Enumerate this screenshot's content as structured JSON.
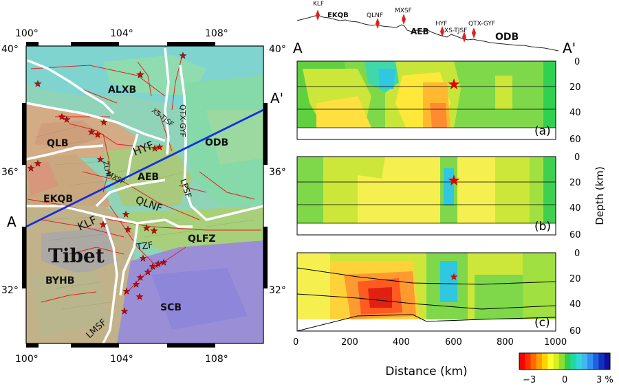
{
  "map": {
    "top_ticks": [
      "100°",
      "104°",
      "108°"
    ],
    "bottom_ticks": [
      "100°",
      "104°",
      "108°"
    ],
    "left_ticks": [
      "40°",
      "36°",
      "32°"
    ],
    "right_ticks": [
      "40°",
      "36°",
      "32°"
    ],
    "profile_start": "A",
    "profile_end": "A'",
    "block_labels": {
      "alxb": "ALXB",
      "qlb": "QLB",
      "odb": "ODB",
      "aeb": "AEB",
      "ekqb": "EKQB",
      "qlfz": "QLFZ",
      "tibet": "Tibet",
      "byhb": "BYHB",
      "scb": "SCB"
    },
    "fault_labels": {
      "hyf": "HYF",
      "zlhf": "ZLHF",
      "mxsf": "MXSF",
      "qlnf": "QLNF",
      "klf": "KLF",
      "tzf": "TZF",
      "lmsf": "LMSF",
      "xstjsf": "XS-TJSF",
      "qtxgyf": "QTX-GYF",
      "lpsf": "LPSF"
    }
  },
  "topography": {
    "klf": "KLF",
    "ekqb": "EKQB",
    "qlnf": "QLNF",
    "mxsf": "MXSF",
    "aeb": "AEB",
    "hyf": "HYF",
    "xstjsf": "XS-TJSF",
    "qtxgyf": "QTX-GYF",
    "odb": "ODB"
  },
  "sections": {
    "start_label": "A",
    "end_label": "A'",
    "panels": [
      {
        "label": "(a)"
      },
      {
        "label": "(b)"
      },
      {
        "label": "(c)"
      }
    ],
    "depth_ticks": [
      "0",
      "20",
      "40",
      "60"
    ],
    "depth_axis_label": "Depth (km)",
    "distance_ticks": [
      "0",
      "200",
      "400",
      "600",
      "800",
      "1000"
    ],
    "distance_axis_label": "Distance (km)",
    "hypocenter_distance_km": 600,
    "hypocenter_depth_km": 17
  },
  "colorbar": {
    "tick_labels": [
      "−3",
      "0",
      "3 %"
    ],
    "colors": [
      "#ff0000",
      "#ff3000",
      "#ff6a00",
      "#ffa000",
      "#ffd200",
      "#ffff30",
      "#d4f020",
      "#8ee030",
      "#30d050",
      "#20d8a0",
      "#30d8d8",
      "#40b8f0",
      "#3090f0",
      "#2060e0",
      "#1030c0",
      "#1010a0"
    ]
  },
  "colors": {
    "profile_line": "#1030e0",
    "star": "#e00000",
    "fault": "#e02020",
    "block_boundary": "#ffffff"
  }
}
